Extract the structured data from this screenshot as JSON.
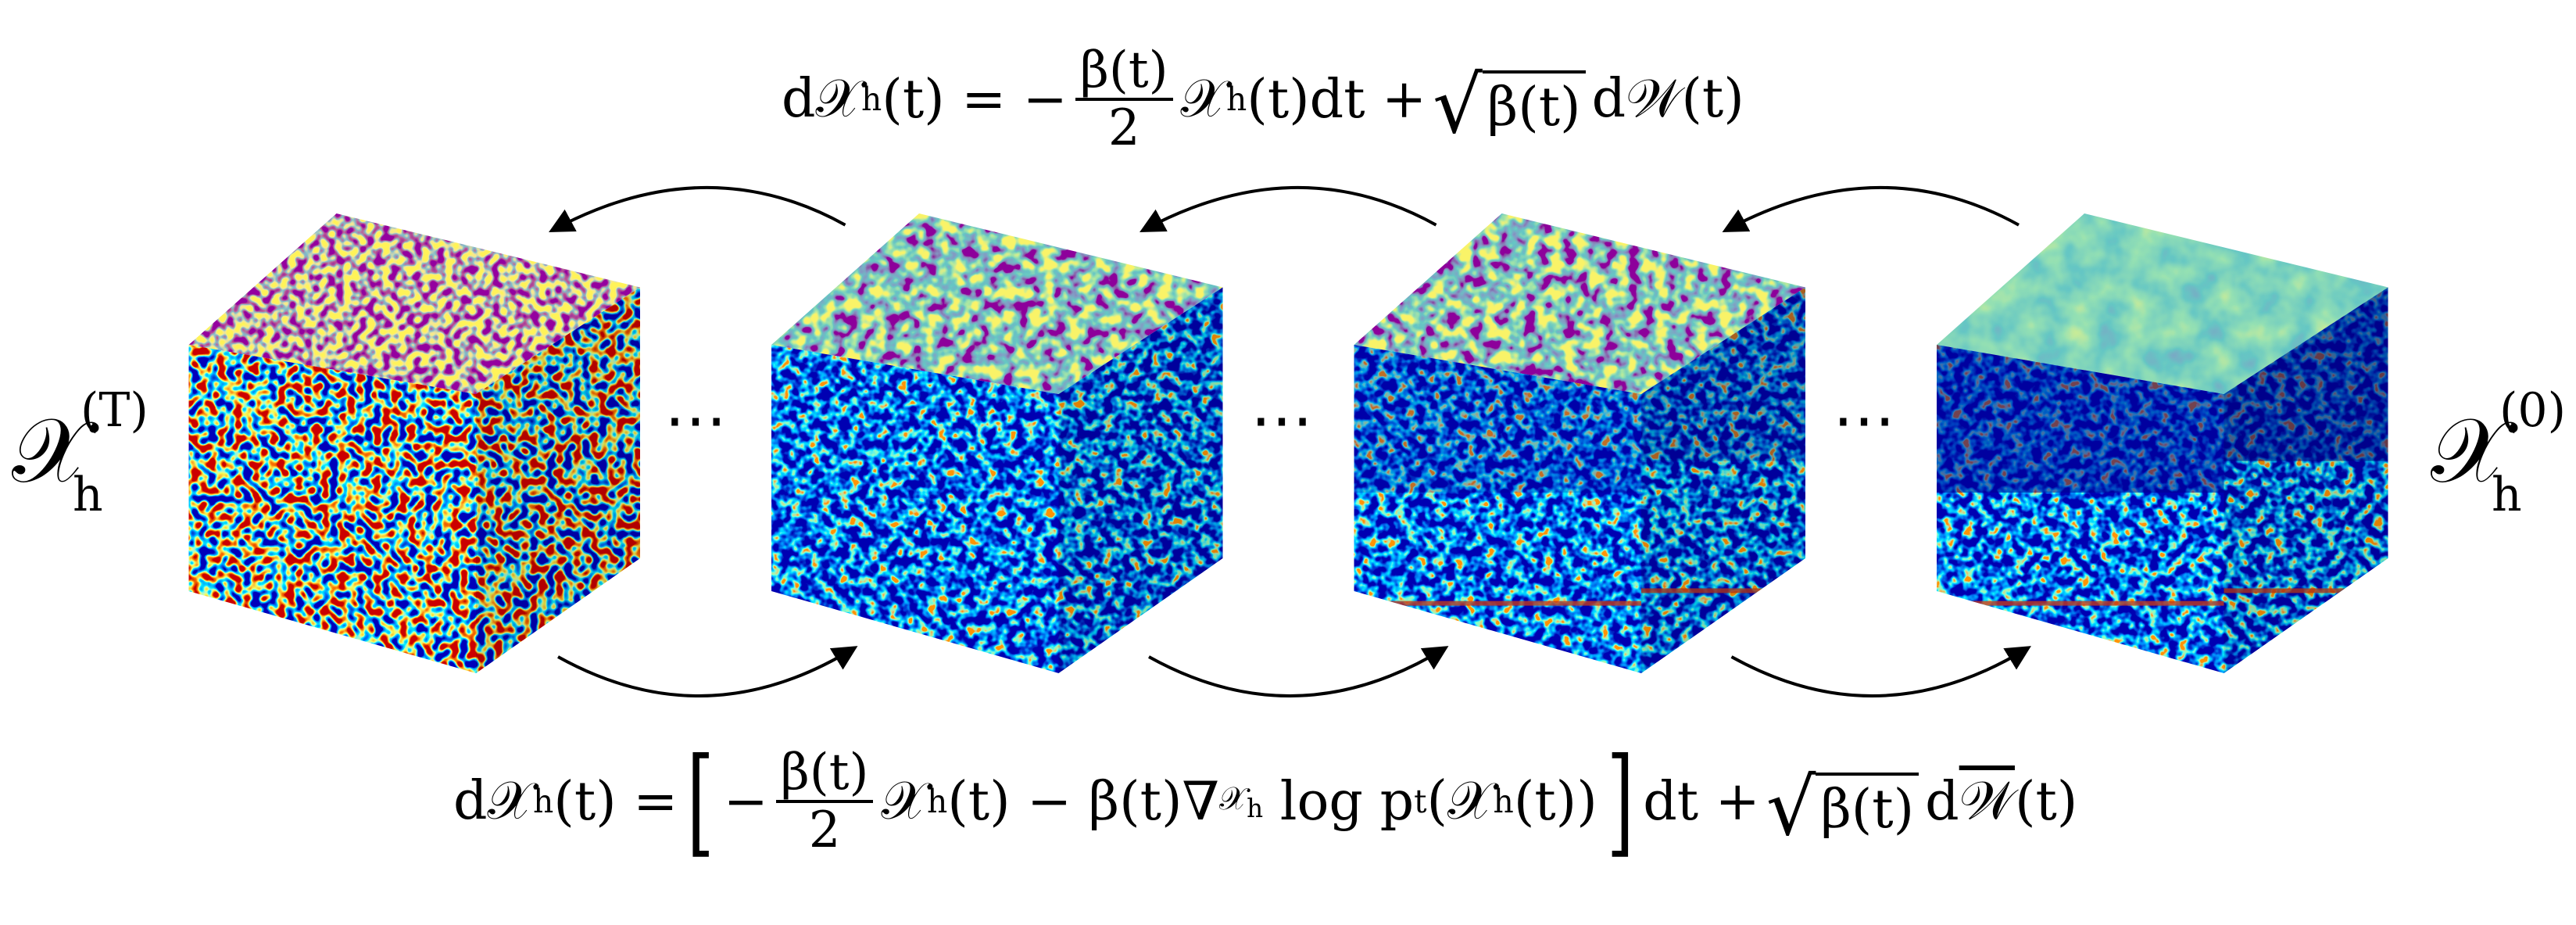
{
  "forward_equation": {
    "pre": "d𝒳",
    "pre_sub": "h",
    "pre_rest": "(t) = −",
    "num": "β(t)",
    "den": "2",
    "mid": "𝒳",
    "mid_sub": "h",
    "mid_rest": "(t)dt +",
    "sqrt": "β(t)",
    "post": "d𝒲(t)"
  },
  "reverse_equation": {
    "pre": "d𝒳",
    "pre_sub": "h",
    "pre_rest": "(t) =",
    "open": "[",
    "minus": "−",
    "num": "β(t)",
    "den": "2",
    "a": "𝒳",
    "a_sub": "h",
    "a_rest": "(t) − β(t)∇",
    "grad_sub": "𝒳",
    "grad_sub_sub": "h",
    "b": "log p",
    "b_sub": "t",
    "b_rest": "(𝒳",
    "c_sub": "h",
    "c_rest": "(t))",
    "close": "]",
    "d": "dt +",
    "sqrt": "β(t)",
    "post_d": "d",
    "post_w": "𝒲",
    "post_rest": "(t)"
  },
  "labels": {
    "start": {
      "main": "𝒳",
      "sub": "h",
      "sup": "(T)"
    },
    "end": {
      "main": "𝒳",
      "sub": "h",
      "sup": "(0)"
    }
  },
  "ellipses": [
    "⋯",
    "⋯",
    "⋯"
  ]
}
